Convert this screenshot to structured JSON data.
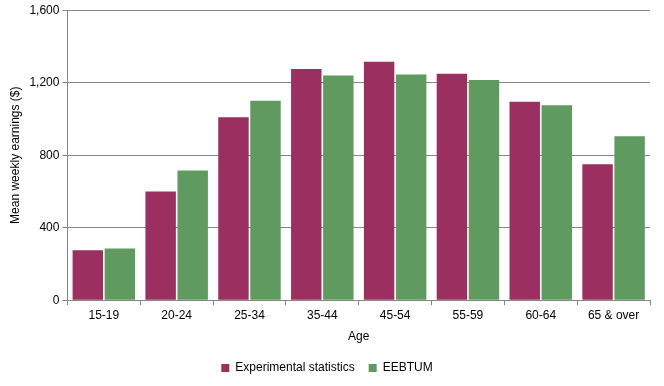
{
  "chart_data": {
    "type": "bar",
    "x_label": "Age",
    "y_label": "Mean weekly earnings ($)",
    "categories": [
      "15-19",
      "20-24",
      "25-34",
      "35-44",
      "45-54",
      "55-59",
      "60-64",
      "65 & over"
    ],
    "series": [
      {
        "name": "Experimental statistics",
        "color": "#9b2f5f",
        "values": [
          275,
          600,
          1010,
          1275,
          1315,
          1250,
          1095,
          750
        ]
      },
      {
        "name": "EEBTUM",
        "color": "#5f9a5e",
        "values": [
          285,
          715,
          1100,
          1240,
          1245,
          1215,
          1075,
          905
        ]
      }
    ],
    "ylim": [
      0,
      1600
    ],
    "yticks": [
      0,
      400,
      800,
      {
        "value": 1200,
        "label": "1,200"
      },
      {
        "value": 1600,
        "label": "1,600"
      }
    ],
    "grid": true,
    "legend": "bottom"
  }
}
